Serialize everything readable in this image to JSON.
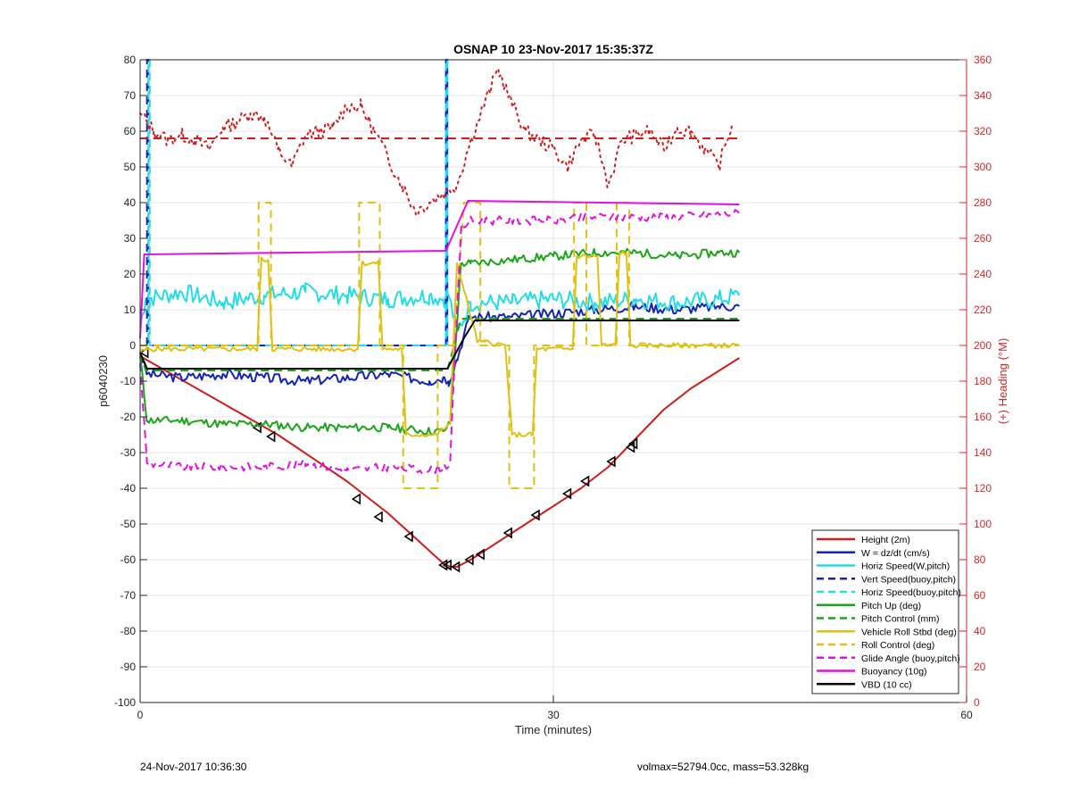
{
  "footer": {
    "left_text": "24-Nov-2017 10:36:30",
    "right_text": "volmax=52794.0cc, mass=53.328kg"
  },
  "chart_data": {
    "type": "line",
    "title": "OSNAP 10 23-Nov-2017 15:35:37Z",
    "xlabel": "Time (minutes)",
    "ylabel": "p6040230",
    "y2label": "(+) Heading (°M)",
    "xlim": [
      0,
      60
    ],
    "ylim": [
      -100,
      80
    ],
    "y2lim": [
      0,
      360
    ],
    "xticks": [
      0,
      30,
      60
    ],
    "yticks": [
      -100,
      -90,
      -80,
      -70,
      -60,
      -50,
      -40,
      -30,
      -20,
      -10,
      0,
      10,
      20,
      30,
      40,
      50,
      60,
      70,
      80
    ],
    "y2ticks": [
      0,
      20,
      40,
      60,
      80,
      100,
      120,
      140,
      160,
      180,
      200,
      220,
      240,
      260,
      280,
      300,
      320,
      340,
      360
    ],
    "grid": true,
    "legend_position": "lower-right",
    "colors": {
      "axes": "#262626",
      "right_axis": "#d62728",
      "grid": "#e6e6e6"
    },
    "series": [
      {
        "name": "Height (2m)",
        "color": "#d01c1c",
        "style": "solid",
        "width": 2,
        "x": [
          0,
          5,
          10,
          15,
          18,
          22,
          22.5,
          23,
          24,
          26,
          28,
          30,
          32,
          34,
          36,
          38,
          40,
          43.5
        ],
        "y": [
          -3,
          -14,
          -25,
          -38,
          -47,
          -61,
          -62,
          -62,
          -60,
          -55,
          -50,
          -45,
          -40,
          -34,
          -26,
          -18,
          -12,
          -3.5
        ],
        "markers": {
          "x": [
            0.3,
            8.5,
            9.5,
            15.7,
            17.3,
            19.5,
            22,
            22.3,
            22.9,
            23.9,
            24.7,
            26.7,
            28.7,
            31,
            32.3,
            34.2,
            35.6,
            35.8
          ],
          "y": [
            -2,
            -23,
            -25.5,
            -43,
            -48,
            -53.5,
            -61.5,
            -61.5,
            -62,
            -60,
            -58.5,
            -52.5,
            -47.5,
            -41.5,
            -38,
            -32.5,
            -28.5,
            -27.5
          ]
        }
      },
      {
        "name": "W = dz/dt (cm/s)",
        "color": "#1624b4",
        "style": "solid",
        "width": 2,
        "x": [
          0,
          0.5,
          3,
          6,
          9,
          12,
          15,
          18,
          21,
          22,
          22.4,
          23,
          23.8,
          24,
          27,
          30,
          33,
          36,
          39,
          42,
          43.5
        ],
        "y": [
          -2,
          -8,
          -9,
          -8,
          -9,
          -10,
          -9,
          -8,
          -10,
          -9,
          -10,
          -4,
          7,
          8,
          8,
          9,
          10,
          11,
          10,
          11,
          11
        ],
        "noise": 1.4,
        "seed": 3
      },
      {
        "name": "Horiz Speed(W,pitch)",
        "color": "#22dde8",
        "style": "solid",
        "width": 2,
        "x": [
          0,
          0.4,
          3,
          6,
          9,
          12,
          15,
          18,
          21,
          22,
          22.4,
          23,
          23.8,
          24,
          27,
          30,
          33,
          36,
          39,
          42,
          43.5
        ],
        "y": [
          5,
          13,
          15,
          12,
          14,
          15,
          14,
          13,
          14,
          13,
          14,
          4,
          10,
          12,
          12,
          13,
          12,
          13,
          12,
          13,
          14
        ],
        "noise": 2.6,
        "seed": 7
      },
      {
        "name": "Vert Speed(buoy,pitch)",
        "color": "#1624b4",
        "style": "dashed",
        "width": 2,
        "x": [
          0.5,
          0.5,
          0.6,
          0.6,
          22.2,
          22.2,
          22.3,
          22.3
        ],
        "y": [
          0,
          80,
          80,
          0,
          0,
          80,
          80,
          0
        ]
      },
      {
        "name": "Horiz Speed(buoy,pitch)",
        "color": "#22dde8",
        "style": "dashed",
        "width": 2,
        "x": [
          0,
          0.6,
          0.6,
          0.7,
          0.7,
          22.2,
          22.2,
          22.3,
          22.3
        ],
        "y": [
          0,
          0,
          80,
          80,
          0,
          0,
          80,
          80,
          0
        ]
      },
      {
        "name": "Pitch Up (deg)",
        "color": "#1aa51a",
        "style": "solid",
        "width": 2,
        "x": [
          0,
          0.5,
          3,
          6,
          9,
          12,
          15,
          18,
          21,
          22,
          22.5,
          23.3,
          24,
          27,
          30,
          33,
          36,
          39,
          42,
          43.5
        ],
        "y": [
          -3,
          -21,
          -21,
          -22,
          -22,
          -23,
          -23,
          -23,
          -24,
          -24,
          -22,
          23,
          23,
          24,
          25,
          26,
          26,
          25,
          26,
          26
        ],
        "noise": 1.2,
        "seed": 11
      },
      {
        "name": "Pitch Control (mm)",
        "color": "#1aa51a",
        "style": "dashed",
        "width": 2,
        "x": [
          0,
          0.4,
          22.3,
          23.3,
          43.5
        ],
        "y": [
          -2,
          -7,
          -7,
          7.5,
          7.5
        ]
      },
      {
        "name": "Vehicle Roll Stbd (deg)",
        "color": "#e0c014",
        "style": "solid",
        "width": 2,
        "x": [
          0,
          0.5,
          8.5,
          8.8,
          9.3,
          9.6,
          15.8,
          16.1,
          17.3,
          17.6,
          19,
          19.3,
          21.5,
          21.8,
          22.5,
          23,
          24.5,
          25,
          26.5,
          27,
          28.5,
          28.8,
          31.4,
          31.7,
          33.2,
          33.5,
          34.5,
          34.8,
          35.3,
          35.6,
          43.5
        ],
        "y": [
          -2,
          -1,
          -1,
          24,
          24,
          -1,
          -1,
          23,
          23,
          -1,
          -1,
          -25,
          -25,
          -24,
          -22,
          23,
          1,
          1,
          0,
          -25,
          -25,
          -1,
          -1,
          25,
          25,
          0,
          0,
          26,
          26,
          0,
          0
        ],
        "noise": 0.7,
        "seed": 5
      },
      {
        "name": "Roll Control (deg)",
        "color": "#e0c014",
        "style": "dashed",
        "width": 2,
        "x": [
          0,
          8.6,
          8.6,
          9.5,
          9.5,
          15.9,
          15.9,
          17.4,
          17.4,
          19.1,
          19.1,
          21.6,
          21.6,
          22.8,
          23.5,
          24.7,
          24.7,
          26.8,
          26.8,
          28.6,
          28.6,
          31.5,
          31.5,
          32.4,
          32.4,
          34.6,
          34.6,
          35.5,
          35.5,
          43.5
        ],
        "y": [
          0,
          0,
          40,
          40,
          0,
          0,
          40,
          40,
          0,
          0,
          -40,
          -40,
          0,
          0,
          40,
          40,
          0,
          0,
          -40,
          -40,
          0,
          0,
          40,
          40,
          0,
          0,
          40,
          40,
          0,
          0
        ]
      },
      {
        "name": "Glide Angle (buoy,pitch)",
        "color": "#e012e0",
        "style": "dashed",
        "width": 2,
        "x": [
          0,
          0.5,
          3,
          6,
          9,
          12,
          15,
          18,
          21,
          22,
          22.5,
          23.3,
          24,
          27,
          30,
          33,
          36,
          39,
          42,
          43.5
        ],
        "y": [
          -5,
          -33,
          -34,
          -34,
          -34,
          -33,
          -35,
          -34,
          -35,
          -34,
          -33,
          33,
          35,
          35,
          35,
          36,
          36,
          36,
          37,
          37
        ],
        "noise": 1.2,
        "seed": 9
      },
      {
        "name": "Buoyancy (10g)",
        "color": "#e012e0",
        "style": "solid",
        "width": 2,
        "x": [
          0,
          0.3,
          22.2,
          23.8,
          43.5
        ],
        "y": [
          2,
          25.5,
          26.5,
          40.5,
          39.5
        ]
      },
      {
        "name": "VBD (10 cc)",
        "color": "#000000",
        "style": "solid",
        "width": 2,
        "x": [
          0,
          0.5,
          22.3,
          23.5,
          24.3,
          43.5
        ],
        "y": [
          -2,
          -6.5,
          -6.5,
          2,
          7,
          7
        ]
      },
      {
        "name": "",
        "axis": "right",
        "color": "#d01c1c",
        "style": "dotted",
        "width": 2,
        "x": [
          0,
          1,
          2,
          3,
          4,
          5,
          6,
          7,
          8,
          9,
          10,
          11,
          12,
          13,
          14,
          15,
          16,
          17,
          18,
          19,
          20,
          21,
          22,
          23,
          24,
          25,
          26,
          27,
          28,
          29,
          30,
          31,
          32,
          33,
          34,
          35,
          36,
          37,
          38,
          39,
          40,
          41,
          42,
          43
        ],
        "y": [
          330,
          320,
          315,
          318,
          315,
          310,
          322,
          325,
          330,
          328,
          310,
          300,
          318,
          320,
          322,
          334,
          334,
          320,
          305,
          290,
          275,
          280,
          285,
          290,
          315,
          335,
          355,
          335,
          320,
          315,
          310,
          300,
          315,
          318,
          290,
          315,
          318,
          320,
          310,
          322,
          320,
          310,
          300,
          325
        ],
        "noise": 4,
        "seed": 13
      },
      {
        "name": "",
        "axis": "right",
        "color": "#d01c1c",
        "style": "dashed",
        "width": 2,
        "x": [
          0,
          43.5
        ],
        "y": [
          316,
          316
        ]
      }
    ]
  }
}
